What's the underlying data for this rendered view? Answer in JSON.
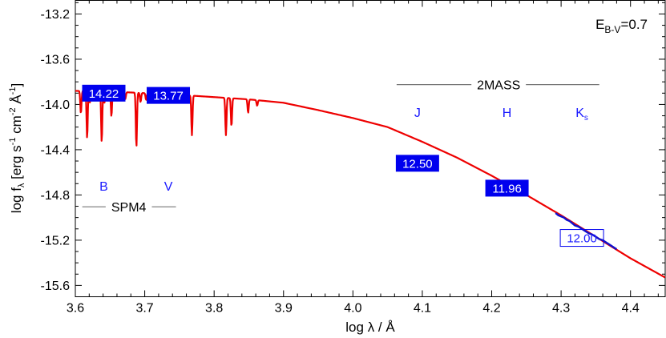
{
  "chart_data": {
    "type": "line",
    "xlabel": "log λ / Å",
    "ylabel": "log f_λ [erg s⁻¹ cm⁻² Å⁻¹]",
    "xlim": [
      3.6,
      4.45
    ],
    "ylim": [
      -15.7,
      -13.08
    ],
    "x_ticks": [
      3.6,
      3.7,
      3.8,
      3.9,
      4.0,
      4.1,
      4.2,
      4.3,
      4.4
    ],
    "x_tick_labels": [
      "3.6",
      "3.7",
      "3.8",
      "3.9",
      "4.0",
      "4.1",
      "4.2",
      "4.3",
      "4.4"
    ],
    "y_ticks": [
      -13.2,
      -13.6,
      -14.0,
      -14.4,
      -14.8,
      -15.2,
      -15.6
    ],
    "y_tick_labels": [
      "-13.2",
      "-13.6",
      "-14.0",
      "-14.4",
      "-14.8",
      "-15.2",
      "-15.6"
    ],
    "grid": false,
    "annotation": {
      "text": "E",
      "subscript": "B-V",
      "suffix": "=0.7"
    },
    "model_color": "#ee0000",
    "obs_color": "#1010cc",
    "box_color": "#0000ee",
    "model": {
      "x": [
        3.6,
        3.65,
        3.7,
        3.75,
        3.8,
        3.85,
        3.9,
        3.95,
        4.0,
        4.05,
        4.1,
        4.15,
        4.2,
        4.25,
        4.3,
        4.35,
        4.4,
        4.45
      ],
      "y": [
        -13.88,
        -13.885,
        -13.9,
        -13.915,
        -13.935,
        -13.955,
        -13.985,
        -14.05,
        -14.12,
        -14.2,
        -14.33,
        -14.47,
        -14.63,
        -14.8,
        -14.98,
        -15.17,
        -15.36,
        -15.53
      ],
      "absorption_lines": [
        {
          "x": 3.608,
          "depth": 0.2
        },
        {
          "x": 3.617,
          "depth": 0.42
        },
        {
          "x": 3.621,
          "depth": 0.1
        },
        {
          "x": 3.626,
          "depth": 0.08
        },
        {
          "x": 3.638,
          "depth": 0.45
        },
        {
          "x": 3.642,
          "depth": 0.1
        },
        {
          "x": 3.652,
          "depth": 0.22
        },
        {
          "x": 3.672,
          "depth": 0.06
        },
        {
          "x": 3.688,
          "depth": 0.48
        },
        {
          "x": 3.694,
          "depth": 0.08
        },
        {
          "x": 3.702,
          "depth": 0.06
        },
        {
          "x": 3.768,
          "depth": 0.35
        },
        {
          "x": 3.817,
          "depth": 0.33
        },
        {
          "x": 3.825,
          "depth": 0.25
        },
        {
          "x": 3.849,
          "depth": 0.12
        },
        {
          "x": 3.862,
          "depth": 0.05
        }
      ]
    },
    "observed_spectrum": {
      "x": [
        4.292,
        4.296,
        4.3,
        4.304,
        4.308,
        4.312,
        4.316,
        4.32,
        4.325,
        4.33,
        4.335,
        4.34,
        4.345,
        4.35,
        4.355,
        4.36,
        4.365,
        4.37,
        4.375,
        4.38
      ],
      "y": [
        -14.96,
        -14.98,
        -14.99,
        -15.0,
        -15.02,
        -15.03,
        -15.05,
        -15.07,
        -15.08,
        -15.1,
        -15.12,
        -15.14,
        -15.15,
        -15.17,
        -15.19,
        -15.2,
        -15.22,
        -15.24,
        -15.26,
        -15.28
      ]
    },
    "photometry": [
      {
        "label": "14.22",
        "x": 3.641,
        "y": -13.9,
        "filled": true
      },
      {
        "label": "13.77",
        "x": 3.734,
        "y": -13.92,
        "filled": true
      },
      {
        "label": "12.50",
        "x": 4.093,
        "y": -14.52,
        "filled": true
      },
      {
        "label": "11.96",
        "x": 4.222,
        "y": -14.74,
        "filled": true
      },
      {
        "label": "12.00",
        "x": 4.33,
        "y": -15.18,
        "filled": false
      }
    ],
    "bands": [
      {
        "label": "B",
        "sub": "",
        "x": 3.641,
        "y": -14.76
      },
      {
        "label": "V",
        "sub": "",
        "x": 3.734,
        "y": -14.76
      },
      {
        "label": "J",
        "sub": "",
        "x": 4.093,
        "y": -14.11
      },
      {
        "label": "H",
        "sub": "",
        "x": 4.222,
        "y": -14.11
      },
      {
        "label": "K",
        "sub": "s",
        "x": 4.33,
        "y": -14.11
      }
    ],
    "groups": [
      {
        "label": "SPM4",
        "x": 3.677,
        "y": -14.94,
        "line_x": [
          3.61,
          3.745
        ]
      },
      {
        "label": "2MASS",
        "x": 4.21,
        "y": -13.86,
        "line_x": [
          4.063,
          4.355
        ]
      }
    ]
  }
}
